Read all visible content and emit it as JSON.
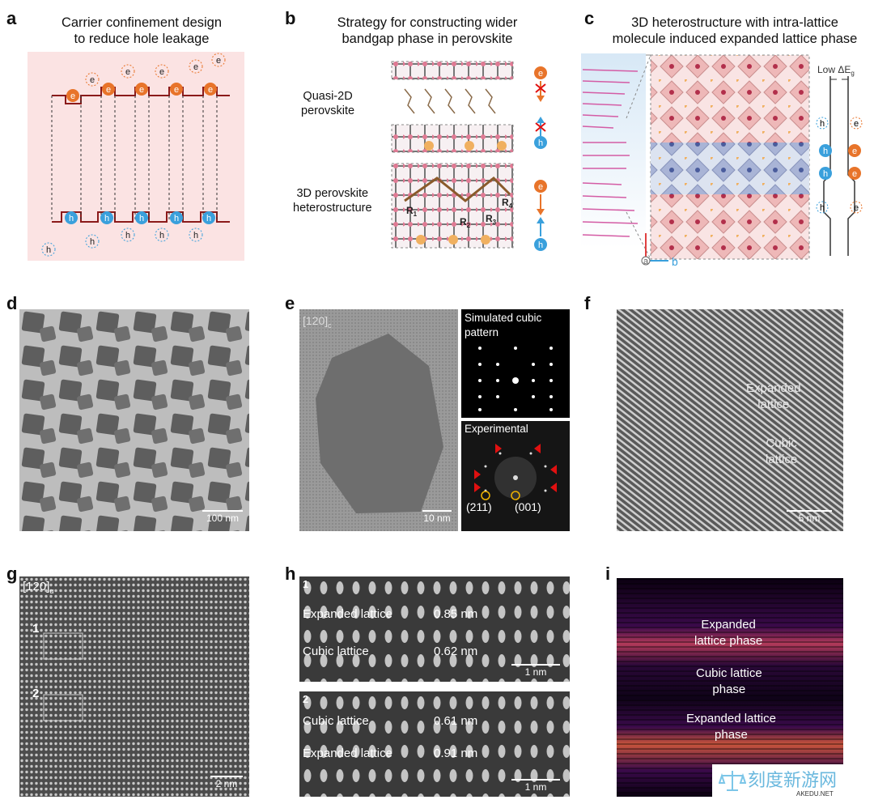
{
  "panels": {
    "a": {
      "label": "a",
      "title_line1": "Carrier confinement design",
      "title_line2": "to reduce hole leakage",
      "electron": "e",
      "hole": "h"
    },
    "b": {
      "label": "b",
      "title_line1": "Strategy for constructing wider",
      "title_line2": "bandgap phase in perovskite",
      "quasi_line1": "Quasi-2D",
      "quasi_line2": "perovskite",
      "hetero_line1": "3D perovskite",
      "hetero_line2": "heterostructure",
      "r1": "R",
      "r1_sub": "1",
      "r2": "R",
      "r2_sub": "2",
      "r3": "R",
      "r3_sub": "3",
      "r4": "R",
      "r4_sub": "4",
      "electron": "e",
      "hole": "h"
    },
    "c": {
      "label": "c",
      "title_line1": "3D heterostructure with intra-lattice",
      "title_line2": "molecule induced expanded lattice phase",
      "low_eg": "Low ΔE",
      "low_eg_sub": "g",
      "axis_a": "a",
      "axis_b": "b",
      "electron": "e",
      "hole": "h"
    },
    "d": {
      "label": "d",
      "scale": "100 nm"
    },
    "e": {
      "label": "e",
      "zone": "[120]",
      "zone_sub": "c",
      "scale": "10 nm",
      "sim_line1": "Simulated cubic",
      "sim_line2": "pattern",
      "exp": "Experimental",
      "spot1": "(211)",
      "spot2": "(001)"
    },
    "f": {
      "label": "f",
      "expanded_line1": "Expanded",
      "expanded_line2": "lattice",
      "cubic_line1": "Cubic",
      "cubic_line2": "lattice",
      "scale": "5 nm"
    },
    "g": {
      "label": "g",
      "zone": "[120]",
      "zone_sub": "α",
      "box1": "1",
      "box2": "2",
      "scale": "2 nm"
    },
    "h": {
      "label": "h",
      "top": {
        "index": "1",
        "row1_label": "Expanded lattice",
        "row1_value": "0.85 nm",
        "row2_label": "Cubic lattice",
        "row2_value": "0.62 nm",
        "scale": "1 nm"
      },
      "bottom": {
        "index": "2",
        "row1_label": "Cubic lattice",
        "row1_value": "0.61 nm",
        "row2_label": "Expanded lattice",
        "row2_value": "0.91 nm",
        "scale": "1 nm"
      }
    },
    "i": {
      "label": "i",
      "exp1_line1": "Expanded",
      "exp1_line2": "lattice phase",
      "cubic_line1": "Cubic lattice",
      "cubic_line2": "phase",
      "exp2_line1": "Expanded lattice",
      "exp2_line2": "phase"
    }
  },
  "watermark": {
    "brand": "刻度新游网",
    "site": "AKEDU.NET"
  },
  "colors": {
    "band_line": "#8b1a1a",
    "electron": "#e8742a",
    "hole": "#3aa0dc",
    "panel_a_bg": "#fbe3e3",
    "fft_ring": "#f0b400",
    "arrow_red": "#e01010"
  }
}
